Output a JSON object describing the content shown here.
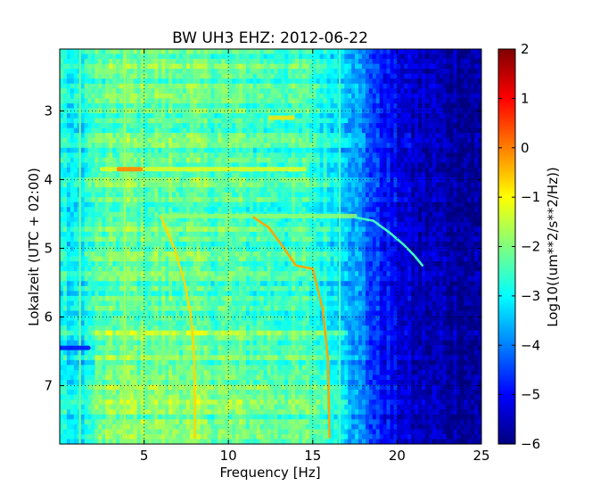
{
  "chart_data": {
    "type": "heatmap",
    "title": "BW UH3 EHZ: 2012-06-22",
    "xlabel": "Frequency [Hz]",
    "ylabel": "Lokalzeit (UTC + 02:00)",
    "xlim": [
      0,
      25
    ],
    "ylim": [
      7.85,
      2.1
    ],
    "x_ticks": [
      5,
      10,
      15,
      20,
      25
    ],
    "y_ticks": [
      3,
      4,
      5,
      6,
      7
    ],
    "grid": true,
    "colorbar": {
      "label": "Log10((um**2/s**2/Hz))",
      "min": -6,
      "max": 2,
      "ticks": [
        2,
        1,
        0,
        -1,
        -2,
        -3,
        -4,
        -5,
        -6
      ],
      "colormap": [
        "#00007f",
        "#0000ff",
        "#007fff",
        "#00ffff",
        "#7fff7f",
        "#ffff00",
        "#ff7f00",
        "#ff0000",
        "#7f0000"
      ]
    },
    "background_level": {
      "frequency_hz": [
        0,
        1,
        2,
        4,
        8,
        12,
        15,
        17,
        19,
        21,
        25
      ],
      "log_psd": [
        -2.8,
        -3.2,
        -2.5,
        -2.2,
        -2.3,
        -2.5,
        -2.6,
        -3.3,
        -4.8,
        -5.5,
        -5.8
      ]
    },
    "features": [
      {
        "kind": "tonal_line",
        "x": [
          3.85,
          3.85
        ],
        "y": [
          2.1,
          7.85
        ],
        "level": -1.7
      },
      {
        "kind": "tonal_line",
        "x": [
          1.2,
          1.2
        ],
        "y": [
          2.1,
          7.85
        ],
        "level": -2.0
      },
      {
        "kind": "tonal_line",
        "x": [
          16.6,
          16.6
        ],
        "y": [
          2.1,
          7.85
        ],
        "level": -2.4
      },
      {
        "kind": "band",
        "x": [
          2.5,
          14.5
        ],
        "y": [
          3.85,
          3.85
        ],
        "level": -1.2
      },
      {
        "kind": "band",
        "x": [
          6,
          17.5
        ],
        "y": [
          4.53,
          4.53
        ],
        "level": -1.8
      },
      {
        "kind": "band",
        "x": [
          3.5,
          4.8
        ],
        "y": [
          3.85,
          3.85
        ],
        "level": 0.0
      },
      {
        "kind": "band",
        "x": [
          12.5,
          13.8
        ],
        "y": [
          3.1,
          3.1
        ],
        "level": -0.8
      },
      {
        "kind": "band",
        "x": [
          0,
          1.7
        ],
        "y": [
          6.45,
          6.45
        ],
        "level": -5.0
      },
      {
        "kind": "sweep",
        "x": [
          6.0,
          6.8,
          7.4,
          7.8,
          7.95,
          8.0,
          8.0
        ],
        "y": [
          4.55,
          5.0,
          5.5,
          6.0,
          6.5,
          7.0,
          7.75
        ],
        "level": -0.7
      },
      {
        "kind": "sweep",
        "x": [
          11.5,
          12.4,
          13.3,
          14.0,
          15.0,
          15.6,
          15.9,
          16.0
        ],
        "y": [
          4.55,
          4.7,
          5.0,
          5.25,
          5.3,
          5.9,
          6.6,
          7.75
        ],
        "level": -0.3
      },
      {
        "kind": "sweep",
        "x": [
          17.5,
          18.6,
          19.6,
          20.4,
          21.0,
          21.5
        ],
        "y": [
          4.55,
          4.6,
          4.78,
          4.95,
          5.1,
          5.25
        ],
        "level": -2.5
      }
    ]
  }
}
